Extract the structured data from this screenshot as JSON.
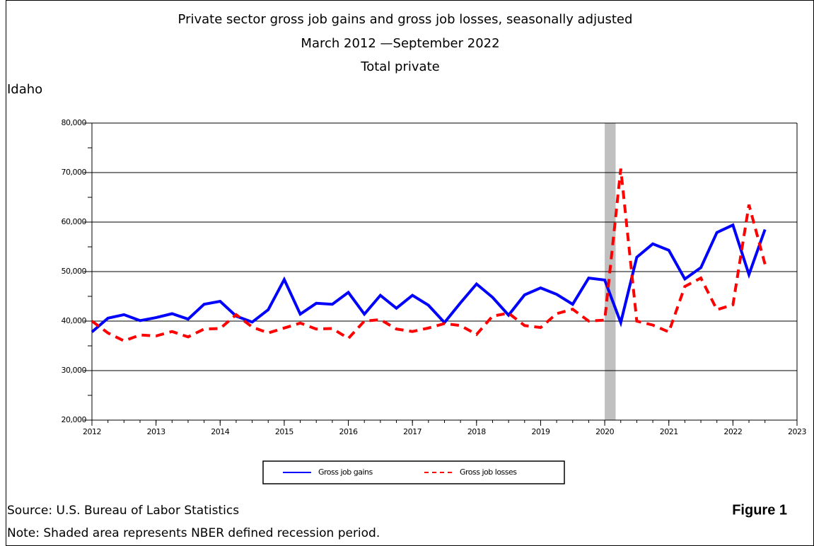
{
  "chart_data": {
    "type": "line",
    "title": "Private sector gross job gains and gross job losses, seasonally adjusted",
    "subtitle": "March 2012 —September 2022",
    "subtitle2": "Total private",
    "region": "Idaho",
    "x": [
      2012,
      2012.25,
      2012.5,
      2012.75,
      2013,
      2013.25,
      2013.5,
      2013.75,
      2014,
      2014.25,
      2014.5,
      2014.75,
      2015,
      2015.25,
      2015.5,
      2015.75,
      2016,
      2016.25,
      2016.5,
      2016.75,
      2017,
      2017.25,
      2017.5,
      2017.75,
      2018,
      2018.25,
      2018.5,
      2018.75,
      2019,
      2019.25,
      2019.5,
      2019.75,
      2020,
      2020.25,
      2020.5,
      2020.75,
      2021,
      2021.25,
      2021.5,
      2021.75,
      2022,
      2022.25,
      2022.5
    ],
    "series": [
      {
        "name": "Gross job gains",
        "color": "#0000ff",
        "dash": false,
        "values": [
          37800,
          40600,
          41300,
          40100,
          40700,
          41500,
          40400,
          43400,
          44000,
          41000,
          39800,
          42300,
          48400,
          41400,
          43600,
          43400,
          45800,
          41400,
          45200,
          42600,
          45200,
          43200,
          39700,
          43700,
          47500,
          44800,
          41200,
          45300,
          46700,
          45400,
          43400,
          48700,
          48300,
          39700,
          52900,
          55600,
          54300,
          48500,
          50800,
          57900,
          59400,
          49400,
          58500
        ]
      },
      {
        "name": "Gross job losses",
        "color": "#ff0000",
        "dash": true,
        "values": [
          40000,
          37600,
          36000,
          37200,
          37000,
          37900,
          36800,
          38400,
          38500,
          41300,
          38800,
          37600,
          38600,
          39600,
          38400,
          38500,
          36500,
          40000,
          40300,
          38400,
          37900,
          38600,
          39500,
          39100,
          37300,
          41000,
          41600,
          39100,
          38700,
          41500,
          42400,
          40000,
          40200,
          70800,
          40000,
          39200,
          37800,
          47000,
          48700,
          42300,
          43300,
          63500,
          51500
        ]
      }
    ],
    "recession_span": [
      2020,
      2020.17
    ],
    "xlim": [
      2012,
      2023
    ],
    "xticks": [
      2012,
      2013,
      2014,
      2015,
      2016,
      2017,
      2018,
      2019,
      2020,
      2021,
      2022,
      2023
    ],
    "ylim": [
      20000,
      80000
    ],
    "yticks": [
      {
        "value": 20000,
        "label": "20,000"
      },
      {
        "value": 30000,
        "label": "30,000"
      },
      {
        "value": 40000,
        "label": "40,000"
      },
      {
        "value": 50000,
        "label": "50,000"
      },
      {
        "value": 60000,
        "label": "60,000"
      },
      {
        "value": 70000,
        "label": "70,000"
      },
      {
        "value": 80000,
        "label": "80,000"
      }
    ],
    "grid": true,
    "source": "Source: U.S. Bureau of Labor Statistics",
    "note": "Note: Shaded area represents NBER defined recession period.",
    "figure_label": "Figure 1"
  }
}
